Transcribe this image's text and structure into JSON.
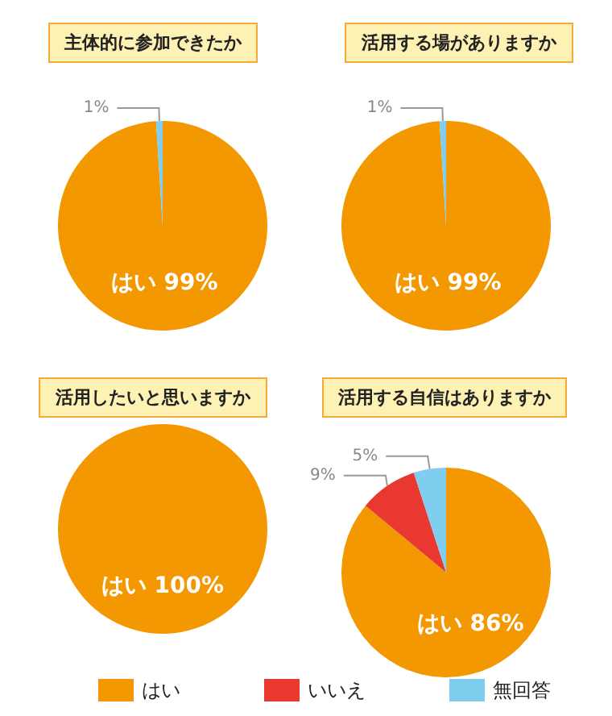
{
  "chart_data": [
    {
      "type": "pie",
      "title": "主体的に参加できたか",
      "categories": [
        "はい",
        null
      ],
      "values": [
        99,
        1
      ],
      "colors": [
        "#f39800",
        "#7fcdef"
      ],
      "value_labels": [
        "99%",
        "1%"
      ]
    },
    {
      "type": "pie",
      "title": "活用する場がありますか",
      "categories": [
        "はい",
        null
      ],
      "values": [
        99,
        1
      ],
      "colors": [
        "#f39800",
        "#7fcdef"
      ],
      "value_labels": [
        "99%",
        "1%"
      ]
    },
    {
      "type": "pie",
      "title": "活用したいと思いますか",
      "categories": [
        "はい"
      ],
      "values": [
        100
      ],
      "colors": [
        "#f39800"
      ],
      "value_labels": [
        "100%"
      ]
    },
    {
      "type": "pie",
      "title": "活用する自信はありますか",
      "categories": [
        "はい",
        "いいえ",
        "無回答"
      ],
      "values": [
        86,
        9,
        5
      ],
      "colors": [
        "#f39800",
        "#e8382f",
        "#7fcdef"
      ],
      "value_labels": [
        "86%",
        "9%",
        "5%"
      ],
      "legend": "bottom"
    }
  ]
}
